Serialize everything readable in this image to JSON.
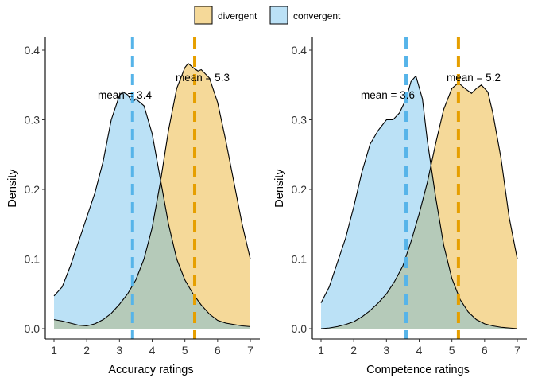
{
  "legend": {
    "position": "top",
    "items": [
      {
        "name": "divergent",
        "color": "#E69F00"
      },
      {
        "name": "convergent",
        "color": "#56B4E9"
      }
    ]
  },
  "chart_data": [
    {
      "type": "area",
      "xlabel": "Accuracy ratings",
      "ylabel": "Density",
      "xlim": [
        1,
        7
      ],
      "ylim": [
        0,
        0.4
      ],
      "x_ticks": [
        "1",
        "2",
        "3",
        "4",
        "5",
        "6",
        "7"
      ],
      "y_ticks": [
        "0.0",
        "0.1",
        "0.2",
        "0.3",
        "0.4"
      ],
      "grid": false,
      "series": [
        {
          "name": "divergent",
          "color": "#E69F00",
          "x": [
            1,
            1.25,
            1.5,
            1.75,
            2,
            2.25,
            2.5,
            2.75,
            3,
            3.25,
            3.5,
            3.75,
            4,
            4.25,
            4.5,
            4.75,
            5,
            5.1,
            5.25,
            5.4,
            5.5,
            5.75,
            6,
            6.25,
            6.5,
            6.75,
            7
          ],
          "y": [
            0.013,
            0.011,
            0.008,
            0.005,
            0.004,
            0.007,
            0.013,
            0.022,
            0.035,
            0.05,
            0.07,
            0.1,
            0.145,
            0.21,
            0.285,
            0.345,
            0.375,
            0.381,
            0.375,
            0.37,
            0.372,
            0.36,
            0.325,
            0.27,
            0.21,
            0.15,
            0.1
          ]
        },
        {
          "name": "convergent",
          "color": "#56B4E9",
          "x": [
            1,
            1.25,
            1.5,
            1.75,
            2,
            2.25,
            2.5,
            2.75,
            3,
            3.1,
            3.25,
            3.4,
            3.5,
            3.75,
            4,
            4.25,
            4.5,
            4.75,
            5,
            5.25,
            5.5,
            5.75,
            6,
            6.25,
            6.5,
            6.75,
            7
          ],
          "y": [
            0.047,
            0.06,
            0.09,
            0.125,
            0.16,
            0.195,
            0.24,
            0.3,
            0.335,
            0.34,
            0.336,
            0.325,
            0.33,
            0.32,
            0.28,
            0.215,
            0.15,
            0.1,
            0.07,
            0.05,
            0.034,
            0.021,
            0.012,
            0.008,
            0.006,
            0.004,
            0.003
          ]
        }
      ],
      "mean_lines": [
        {
          "series": "convergent",
          "x": 3.4,
          "label": "mean = 3.4"
        },
        {
          "series": "divergent",
          "x": 5.3,
          "label": "mean = 5.3"
        }
      ]
    },
    {
      "type": "area",
      "xlabel": "Competence ratings",
      "ylabel": "Density",
      "xlim": [
        1,
        7
      ],
      "ylim": [
        0,
        0.4
      ],
      "x_ticks": [
        "1",
        "2",
        "3",
        "4",
        "5",
        "6",
        "7"
      ],
      "y_ticks": [
        "0.0",
        "0.1",
        "0.2",
        "0.3",
        "0.4"
      ],
      "grid": false,
      "series": [
        {
          "name": "divergent",
          "color": "#E69F00",
          "x": [
            1,
            1.25,
            1.5,
            1.75,
            2,
            2.25,
            2.5,
            2.75,
            3,
            3.25,
            3.5,
            3.75,
            4,
            4.25,
            4.5,
            4.75,
            5,
            5.2,
            5.4,
            5.6,
            5.75,
            5.9,
            6.1,
            6.25,
            6.5,
            6.75,
            7
          ],
          "y": [
            0.0,
            0.001,
            0.003,
            0.006,
            0.01,
            0.017,
            0.026,
            0.037,
            0.05,
            0.068,
            0.09,
            0.125,
            0.165,
            0.21,
            0.265,
            0.315,
            0.345,
            0.353,
            0.345,
            0.338,
            0.345,
            0.35,
            0.34,
            0.31,
            0.245,
            0.16,
            0.1
          ]
        },
        {
          "name": "convergent",
          "color": "#56B4E9",
          "x": [
            1,
            1.25,
            1.5,
            1.75,
            2,
            2.25,
            2.5,
            2.75,
            3,
            3.2,
            3.4,
            3.6,
            3.75,
            3.9,
            4.1,
            4.25,
            4.5,
            4.75,
            5,
            5.25,
            5.5,
            5.75,
            6,
            6.25,
            6.5,
            6.75,
            7
          ],
          "y": [
            0.037,
            0.06,
            0.095,
            0.13,
            0.175,
            0.225,
            0.265,
            0.285,
            0.3,
            0.3,
            0.31,
            0.33,
            0.355,
            0.363,
            0.33,
            0.27,
            0.19,
            0.12,
            0.072,
            0.042,
            0.024,
            0.013,
            0.007,
            0.004,
            0.002,
            0.001,
            0.0
          ]
        }
      ],
      "mean_lines": [
        {
          "series": "convergent",
          "x": 3.6,
          "label": "mean = 3.6"
        },
        {
          "series": "divergent",
          "x": 5.2,
          "label": "mean = 5.2"
        }
      ]
    }
  ]
}
